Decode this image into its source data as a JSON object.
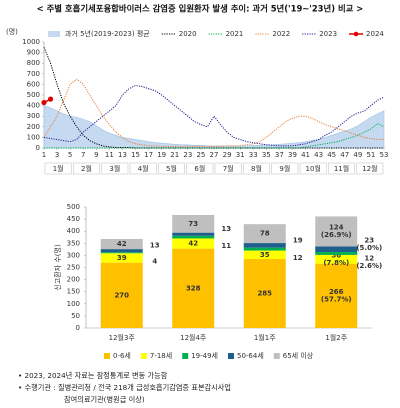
{
  "chart_data": [
    {
      "type": "line",
      "title": "< 주별 호흡기세포융합바이러스 감염증 입원환자 발생 추이: 과거 5년('19~'23년) 비교 >",
      "y_unit": "(명)",
      "x": [
        1,
        2,
        3,
        4,
        5,
        6,
        7,
        8,
        9,
        10,
        11,
        12,
        13,
        14,
        15,
        16,
        17,
        18,
        19,
        20,
        21,
        22,
        23,
        24,
        25,
        26,
        27,
        28,
        29,
        30,
        31,
        32,
        33,
        34,
        35,
        36,
        37,
        38,
        39,
        40,
        41,
        42,
        43,
        44,
        45,
        46,
        47,
        48,
        49,
        50,
        51,
        52,
        53
      ],
      "xlim": [
        1,
        53
      ],
      "xticks": [
        1,
        3,
        5,
        7,
        9,
        11,
        13,
        15,
        17,
        19,
        21,
        23,
        25,
        27,
        29,
        31,
        33,
        35,
        37,
        39,
        41,
        43,
        45,
        47,
        49,
        51,
        53
      ],
      "ylim": [
        0,
        1000
      ],
      "yticks": [
        0,
        100,
        200,
        300,
        400,
        500,
        600,
        700,
        800,
        900,
        1000
      ],
      "month_labels": [
        "1월",
        "2월",
        "3월",
        "4월",
        "5월",
        "6월",
        "7월",
        "8월",
        "9월",
        "10월",
        "11월",
        "12월"
      ],
      "series": [
        {
          "name": "과거 5년(2019-2023) 평균",
          "color": "#c5d9f1",
          "style": "area",
          "values": [
            400,
            380,
            350,
            320,
            300,
            290,
            270,
            250,
            210,
            170,
            140,
            120,
            100,
            90,
            80,
            70,
            60,
            50,
            45,
            40,
            35,
            30,
            30,
            25,
            25,
            20,
            20,
            20,
            20,
            20,
            20,
            20,
            25,
            25,
            30,
            30,
            35,
            40,
            45,
            50,
            60,
            70,
            80,
            100,
            120,
            140,
            160,
            180,
            210,
            250,
            290,
            320,
            350
          ]
        },
        {
          "name": "2020",
          "color": "#000000",
          "style": "dotted",
          "values": [
            950,
            800,
            600,
            420,
            300,
            200,
            120,
            70,
            40,
            20,
            10,
            5,
            5,
            5,
            0,
            0,
            0,
            0,
            0,
            0,
            0,
            0,
            0,
            0,
            0,
            0,
            0,
            0,
            0,
            0,
            0,
            0,
            0,
            0,
            0,
            0,
            0,
            0,
            0,
            0,
            0,
            0,
            0,
            0,
            0,
            0,
            0,
            0,
            0,
            0,
            0,
            0,
            0
          ]
        },
        {
          "name": "2021",
          "color": "#00b050",
          "style": "dotted",
          "values": [
            0,
            0,
            0,
            0,
            0,
            0,
            0,
            0,
            0,
            0,
            0,
            0,
            0,
            0,
            0,
            0,
            0,
            0,
            0,
            0,
            0,
            0,
            0,
            0,
            0,
            0,
            0,
            0,
            0,
            0,
            0,
            0,
            0,
            0,
            0,
            0,
            0,
            0,
            0,
            0,
            10,
            20,
            30,
            40,
            50,
            60,
            80,
            100,
            120,
            150,
            180,
            230,
            200
          ]
        },
        {
          "name": "2022",
          "color": "#ed7d31",
          "style": "dotted",
          "values": [
            100,
            200,
            300,
            450,
            600,
            650,
            600,
            500,
            400,
            300,
            220,
            150,
            100,
            60,
            40,
            30,
            20,
            20,
            15,
            15,
            15,
            15,
            15,
            15,
            15,
            15,
            15,
            15,
            20,
            20,
            20,
            30,
            40,
            60,
            100,
            150,
            200,
            250,
            280,
            300,
            300,
            280,
            250,
            220,
            200,
            180,
            160,
            140,
            120,
            100,
            90,
            80,
            80
          ]
        },
        {
          "name": "2023",
          "color": "#1f1f8f",
          "style": "dotted",
          "values": [
            100,
            90,
            80,
            70,
            60,
            80,
            150,
            200,
            250,
            300,
            350,
            400,
            500,
            560,
            590,
            580,
            560,
            540,
            500,
            450,
            400,
            350,
            300,
            250,
            220,
            200,
            300,
            220,
            150,
            100,
            80,
            60,
            50,
            40,
            30,
            25,
            20,
            20,
            20,
            30,
            40,
            60,
            80,
            120,
            150,
            200,
            250,
            300,
            330,
            350,
            400,
            450,
            480
          ]
        },
        {
          "name": "2024",
          "color": "#e00000",
          "style": "marker",
          "values": [
            429,
            461,
            null,
            null,
            null,
            null,
            null,
            null,
            null,
            null,
            null,
            null,
            null,
            null,
            null,
            null,
            null,
            null,
            null,
            null,
            null,
            null,
            null,
            null,
            null,
            null,
            null,
            null,
            null,
            null,
            null,
            null,
            null,
            null,
            null,
            null,
            null,
            null,
            null,
            null,
            null,
            null,
            null,
            null,
            null,
            null,
            null,
            null,
            null,
            null,
            null,
            null,
            null
          ]
        }
      ]
    },
    {
      "type": "stacked-bar",
      "ylabel": "신고환자 수(명)",
      "categories": [
        "12월3주",
        "12월4주",
        "1월1주",
        "1월2주"
      ],
      "ylim": [
        0,
        500
      ],
      "yticks": [
        0,
        50,
        100,
        150,
        200,
        250,
        300,
        350,
        400,
        450,
        500
      ],
      "series": [
        {
          "name": "0-6세",
          "color": "#ffc000",
          "values": [
            270,
            328,
            285,
            266
          ],
          "value_labels": [
            "270",
            "328",
            "285",
            "266 (57.7%)"
          ]
        },
        {
          "name": "7-18세",
          "color": "#ffff00",
          "values": [
            39,
            42,
            35,
            36
          ],
          "value_labels": [
            "39",
            "42",
            "35",
            "36 (7.8%)"
          ]
        },
        {
          "name": "19-49세",
          "color": "#00b050",
          "values": [
            4,
            11,
            12,
            12
          ],
          "value_labels": [
            "4",
            "11",
            "12",
            "12 (2.6%)"
          ]
        },
        {
          "name": "50-64세",
          "color": "#1f5f8b",
          "values": [
            13,
            13,
            19,
            23
          ],
          "value_labels": [
            "13",
            "13",
            "19",
            "23 (5.0%)"
          ]
        },
        {
          "name": "65세 이상",
          "color": "#bfbfbf",
          "values": [
            42,
            73,
            78,
            124
          ],
          "value_labels": [
            "42",
            "73",
            "78",
            "124 (26.9%)"
          ]
        }
      ]
    }
  ],
  "notes": [
    "• 2023, 2024년 자료는 잠정통계로 변동 가능함",
    "• 수행기관 : 질병관리청 / 전국 218개 급성호흡기감염증 표본감시사업",
    "참여의료기관(병원급 이상)"
  ]
}
